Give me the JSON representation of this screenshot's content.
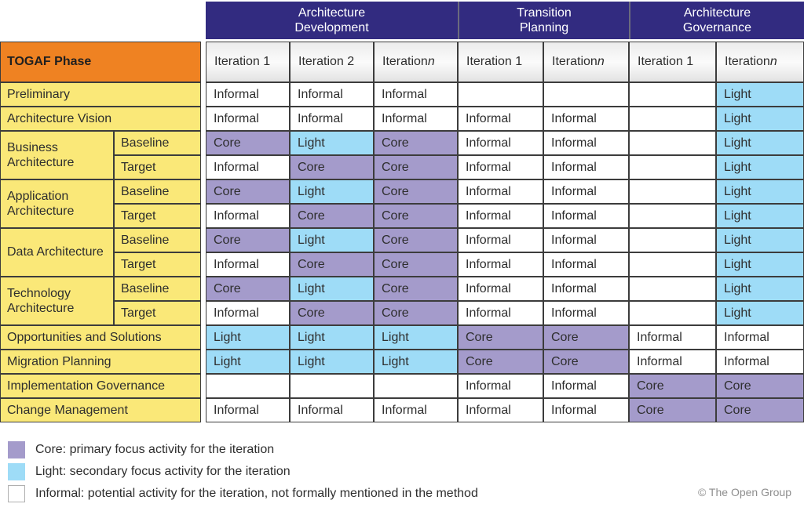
{
  "header": {
    "phase_col_label": "TOGAF Phase",
    "groups": [
      {
        "label": "Architecture Development",
        "iterations": [
          "Iteration 1",
          "Iteration 2",
          "Iteration n"
        ]
      },
      {
        "label": "Transition Planning",
        "iterations": [
          "Iteration 1",
          "Iteration n"
        ]
      },
      {
        "label": "Architecture Governance",
        "iterations": [
          "Iteration 1",
          "Iteration n"
        ]
      }
    ]
  },
  "matrix": {
    "row_groups": [
      {
        "phase": "Preliminary",
        "rows": [
          {
            "sub": "",
            "cells": [
              "Informal",
              "Informal",
              "Informal",
              "",
              "",
              "",
              "Light"
            ]
          }
        ]
      },
      {
        "phase": "Architecture Vision",
        "rows": [
          {
            "sub": "",
            "cells": [
              "Informal",
              "Informal",
              "Informal",
              "Informal",
              "Informal",
              "",
              "Light"
            ]
          }
        ]
      },
      {
        "phase": "Business Architecture",
        "rows": [
          {
            "sub": "Baseline",
            "cells": [
              "Core",
              "Light",
              "Core",
              "Informal",
              "Informal",
              "",
              "Light"
            ]
          },
          {
            "sub": "Target",
            "cells": [
              "Informal",
              "Core",
              "Core",
              "Informal",
              "Informal",
              "",
              "Light"
            ]
          }
        ]
      },
      {
        "phase": "Application Architecture",
        "rows": [
          {
            "sub": "Baseline",
            "cells": [
              "Core",
              "Light",
              "Core",
              "Informal",
              "Informal",
              "",
              "Light"
            ]
          },
          {
            "sub": "Target",
            "cells": [
              "Informal",
              "Core",
              "Core",
              "Informal",
              "Informal",
              "",
              "Light"
            ]
          }
        ]
      },
      {
        "phase": "Data Architecture",
        "rows": [
          {
            "sub": "Baseline",
            "cells": [
              "Core",
              "Light",
              "Core",
              "Informal",
              "Informal",
              "",
              "Light"
            ]
          },
          {
            "sub": "Target",
            "cells": [
              "Informal",
              "Core",
              "Core",
              "Informal",
              "Informal",
              "",
              "Light"
            ]
          }
        ]
      },
      {
        "phase": "Technology Architecture",
        "rows": [
          {
            "sub": "Baseline",
            "cells": [
              "Core",
              "Light",
              "Core",
              "Informal",
              "Informal",
              "",
              "Light"
            ]
          },
          {
            "sub": "Target",
            "cells": [
              "Informal",
              "Core",
              "Core",
              "Informal",
              "Informal",
              "",
              "Light"
            ]
          }
        ]
      },
      {
        "phase": "Opportunities and Solutions",
        "rows": [
          {
            "sub": "",
            "cells": [
              "Light",
              "Light",
              "Light",
              "Core",
              "Core",
              "Informal",
              "Informal"
            ]
          }
        ]
      },
      {
        "phase": "Migration Planning",
        "rows": [
          {
            "sub": "",
            "cells": [
              "Light",
              "Light",
              "Light",
              "Core",
              "Core",
              "Informal",
              "Informal"
            ]
          }
        ]
      },
      {
        "phase": "Implementation Governance",
        "rows": [
          {
            "sub": "",
            "cells": [
              "",
              "",
              "",
              "Informal",
              "Informal",
              "Core",
              "Core"
            ]
          }
        ]
      },
      {
        "phase": "Change Management",
        "rows": [
          {
            "sub": "",
            "cells": [
              "Informal",
              "Informal",
              "Informal",
              "Informal",
              "Informal",
              "Core",
              "Core"
            ]
          }
        ]
      }
    ]
  },
  "legend": {
    "items": [
      {
        "key": "core",
        "label": "Core: primary focus activity for the iteration"
      },
      {
        "key": "light",
        "label": "Light: secondary focus activity for the iteration"
      },
      {
        "key": "informal",
        "label": "Informal: potential activity for the iteration, not formally mentioned in the method"
      }
    ]
  },
  "footer": {
    "copyright": "© The Open Group"
  },
  "colors": {
    "group_header_blue": "#322B80",
    "phase_header_orange": "#EF8222",
    "phase_yellow": "#FAE878",
    "core_purple": "#A49BCB",
    "light_blue": "#9EDCF7",
    "informal_white": "#FFFFFF",
    "grid_border": "#3C3C3C"
  }
}
